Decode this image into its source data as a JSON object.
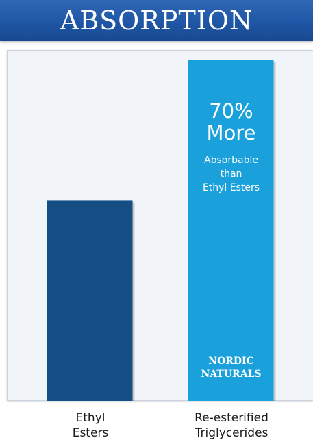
{
  "title": "ABSORPTION",
  "chart_data": {
    "type": "bar",
    "categories": [
      "Ethyl Esters",
      "Re-esterified Triglycerides"
    ],
    "category_lines": [
      [
        "Ethyl",
        "Esters"
      ],
      [
        "Re-esterified",
        "Triglycerides"
      ]
    ],
    "values": [
      100,
      170
    ],
    "ylim": [
      0,
      175
    ],
    "grid": false,
    "bar_colors": [
      "#154d85",
      "#1aa1dc"
    ],
    "annotation": {
      "percent": "70%",
      "more": "More",
      "detail": "Absorbable\nthan\nEthyl Esters"
    },
    "brand": "NORDIC\nNATURALS"
  }
}
